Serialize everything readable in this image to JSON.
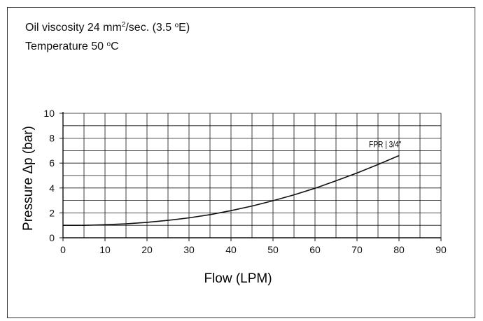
{
  "conditions": {
    "viscosity_prefix": "Oil viscosity 24 mm",
    "viscosity_exp": "2",
    "viscosity_mid": "/sec. (3.5 ",
    "viscosity_deg": "o",
    "viscosity_unit": "E)",
    "temperature_prefix": "Temperature 50 ",
    "temperature_deg": "o",
    "temperature_unit": "C"
  },
  "colors": {
    "line": "#111111",
    "grid": "#111111"
  },
  "chart_data": {
    "type": "line",
    "xlabel": "Flow (LPM)",
    "ylabel": "Pressure Δp (bar)",
    "xlim": [
      0,
      90
    ],
    "ylim": [
      0,
      10
    ],
    "xticks": [
      0,
      10,
      20,
      30,
      40,
      50,
      60,
      70,
      80,
      90
    ],
    "yticks": [
      0,
      2,
      4,
      6,
      8,
      10
    ],
    "x_minor_step": 5,
    "y_minor_step": 1,
    "grid": true,
    "series": [
      {
        "name": "FPR | 3/4\"",
        "x": [
          0,
          5,
          10,
          15,
          20,
          25,
          30,
          35,
          40,
          45,
          50,
          55,
          60,
          65,
          70,
          75,
          80
        ],
        "y": [
          1.0,
          1.0,
          1.05,
          1.12,
          1.24,
          1.4,
          1.6,
          1.86,
          2.18,
          2.55,
          2.98,
          3.45,
          3.98,
          4.58,
          5.2,
          5.88,
          6.6
        ]
      }
    ]
  }
}
